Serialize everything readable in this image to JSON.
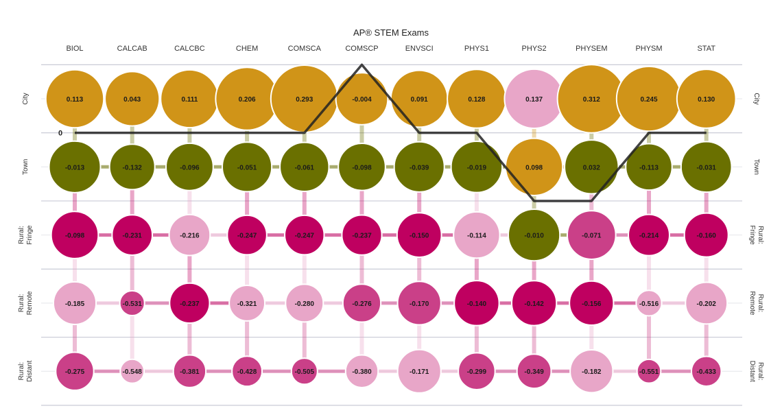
{
  "chart_data": {
    "type": "bubble-matrix",
    "title": "AP® STEM Exams",
    "categories": [
      "BIOL",
      "CALCAB",
      "CALCBC",
      "CHEM",
      "COMSCA",
      "COMSCP",
      "ENVSCI",
      "PHYS1",
      "PHYS2",
      "PHYSEM",
      "PHYSM",
      "STAT"
    ],
    "rows": [
      {
        "label": "City",
        "label_lines": [
          "City"
        ],
        "values": [
          0.113,
          0.043,
          0.111,
          0.206,
          0.293,
          -0.004,
          0.091,
          0.128,
          0.137,
          0.312,
          0.245,
          0.13
        ]
      },
      {
        "label": "Town",
        "label_lines": [
          "Town"
        ],
        "values": [
          -0.013,
          -0.132,
          -0.096,
          -0.051,
          -0.061,
          -0.098,
          -0.039,
          -0.019,
          0.098,
          0.032,
          -0.113,
          -0.031
        ]
      },
      {
        "label": "Rural: Fringe",
        "label_lines": [
          "Rural:",
          "Fringe"
        ],
        "values": [
          -0.098,
          -0.231,
          -0.216,
          -0.247,
          -0.247,
          -0.237,
          -0.15,
          -0.114,
          -0.01,
          -0.071,
          -0.214,
          -0.16
        ]
      },
      {
        "label": "Rural: Remote",
        "label_lines": [
          "Rural:",
          "Remote"
        ],
        "values": [
          -0.185,
          -0.531,
          -0.237,
          -0.321,
          -0.28,
          -0.276,
          -0.17,
          -0.14,
          -0.142,
          -0.156,
          -0.516,
          -0.202
        ]
      },
      {
        "label": "Rural: Distant",
        "label_lines": [
          "Rural:",
          "Distant"
        ],
        "values": [
          -0.275,
          -0.548,
          -0.381,
          -0.428,
          -0.505,
          -0.38,
          -0.171,
          -0.299,
          -0.349,
          -0.182,
          -0.551,
          -0.433
        ]
      }
    ],
    "color_by_row": [
      [
        "gold",
        "gold",
        "gold",
        "gold",
        "gold",
        "gold",
        "gold",
        "gold",
        "pink",
        "gold",
        "gold",
        "gold"
      ],
      [
        "olive",
        "olive",
        "olive",
        "olive",
        "olive",
        "olive",
        "olive",
        "olive",
        "gold",
        "olive",
        "olive",
        "olive"
      ],
      [
        "crimson",
        "crimson",
        "pink",
        "crimson",
        "crimson",
        "crimson",
        "crimson",
        "pink",
        "olive",
        "magenta",
        "crimson",
        "crimson"
      ],
      [
        "pink",
        "magenta",
        "crimson",
        "pink",
        "pink",
        "magenta",
        "magenta",
        "crimson",
        "crimson",
        "crimson",
        "pink",
        "pink"
      ],
      [
        "magenta",
        "pink",
        "magenta",
        "magenta",
        "magenta",
        "pink",
        "pink",
        "magenta",
        "magenta",
        "pink",
        "magenta",
        "magenta"
      ]
    ],
    "colors": {
      "gold": "#d09418",
      "olive": "#6a7000",
      "crimson": "#bf0060",
      "magenta": "#ca4088",
      "pink": "#e8a6c8",
      "grid": "#c9cbd6",
      "line": "#222222"
    },
    "zero_line_label": "0",
    "comscp_line": {
      "row_positions": [
        1,
        1,
        1,
        1,
        1,
        0,
        1,
        1,
        2,
        2,
        1,
        1
      ]
    }
  }
}
